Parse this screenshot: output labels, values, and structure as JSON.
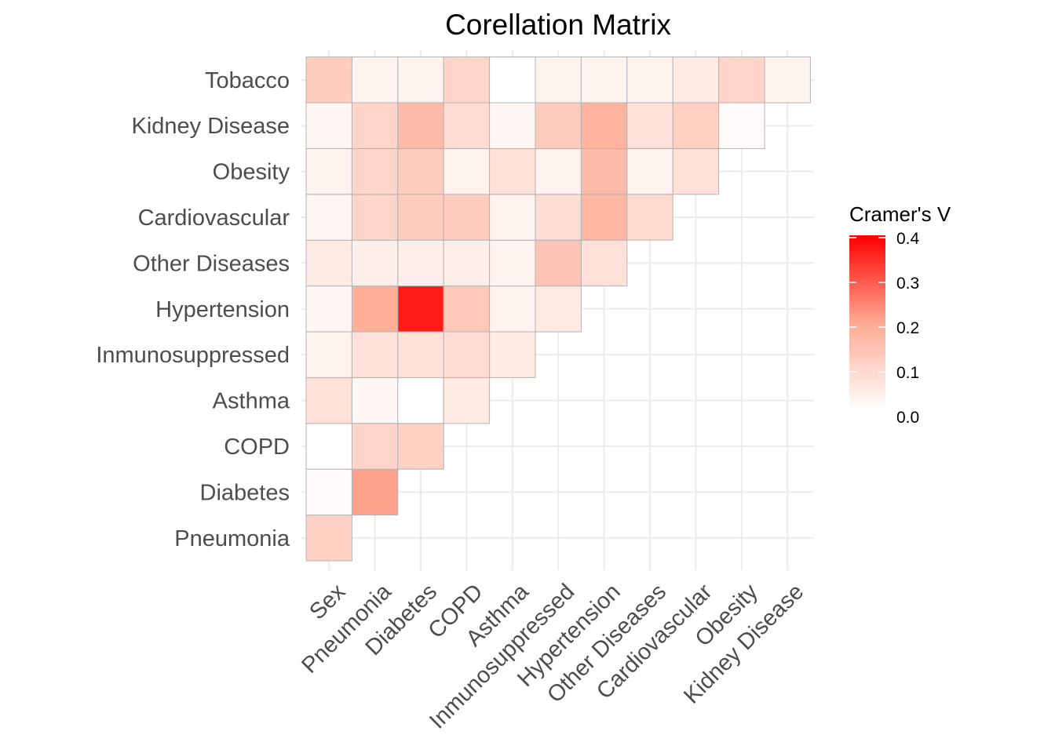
{
  "chart_data": {
    "type": "heatmap",
    "title": "Corellation Matrix",
    "x_categories": [
      "Sex",
      "Pneumonia",
      "Diabetes",
      "COPD",
      "Asthma",
      "Inmunosuppressed",
      "Hypertension",
      "Other Diseases",
      "Cardiovascular",
      "Obesity",
      "Kidney Disease"
    ],
    "y_categories": [
      "Pneumonia",
      "Diabetes",
      "COPD",
      "Asthma",
      "Inmunosuppressed",
      "Hypertension",
      "Other Diseases",
      "Cardiovascular",
      "Obesity",
      "Kidney Disease",
      "Tobacco"
    ],
    "values": [
      [
        0.11
      ],
      [
        0.01,
        0.21
      ],
      [
        0.0,
        0.1,
        0.11
      ],
      [
        0.07,
        0.02,
        0.0,
        0.05
      ],
      [
        0.03,
        0.07,
        0.07,
        0.08,
        0.05
      ],
      [
        0.02,
        0.19,
        0.37,
        0.13,
        0.03,
        0.05
      ],
      [
        0.05,
        0.04,
        0.04,
        0.04,
        0.03,
        0.14,
        0.07
      ],
      [
        0.02,
        0.1,
        0.12,
        0.12,
        0.03,
        0.08,
        0.17,
        0.09
      ],
      [
        0.03,
        0.1,
        0.12,
        0.03,
        0.07,
        0.03,
        0.16,
        0.03,
        0.07
      ],
      [
        0.02,
        0.1,
        0.16,
        0.08,
        0.02,
        0.12,
        0.18,
        0.07,
        0.11,
        0.01
      ],
      [
        0.12,
        0.03,
        0.03,
        0.1,
        0.0,
        0.03,
        0.03,
        0.03,
        0.05,
        0.1,
        0.03
      ]
    ],
    "legend": {
      "title": "Cramer's V",
      "min": 0.0,
      "max": 0.4,
      "ticks": [
        "0.0",
        "0.1",
        "0.2",
        "0.3",
        "0.4"
      ],
      "low_color": "#ffffff",
      "high_color": "#ff0000",
      "placement": "right"
    },
    "grid": true
  }
}
